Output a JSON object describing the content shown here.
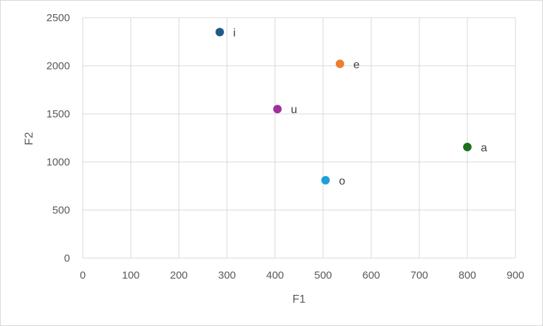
{
  "chart_data": {
    "type": "scatter",
    "title": "",
    "xlabel": "F1",
    "ylabel": "F2",
    "xlim": [
      0,
      900
    ],
    "ylim": [
      0,
      2500
    ],
    "x_ticks": [
      0,
      100,
      200,
      300,
      400,
      500,
      600,
      700,
      800,
      900
    ],
    "y_ticks": [
      0,
      500,
      1000,
      1500,
      2000,
      2500
    ],
    "grid": true,
    "legend": "none",
    "points": [
      {
        "label": "i",
        "x": 285,
        "y": 2350,
        "color": "#1f5c85"
      },
      {
        "label": "e",
        "x": 535,
        "y": 2020,
        "color": "#ed7d31"
      },
      {
        "label": "u",
        "x": 405,
        "y": 1550,
        "color": "#a0309e"
      },
      {
        "label": "a",
        "x": 800,
        "y": 1155,
        "color": "#1e6f1e"
      },
      {
        "label": "o",
        "x": 505,
        "y": 810,
        "color": "#1f9fda"
      }
    ]
  }
}
